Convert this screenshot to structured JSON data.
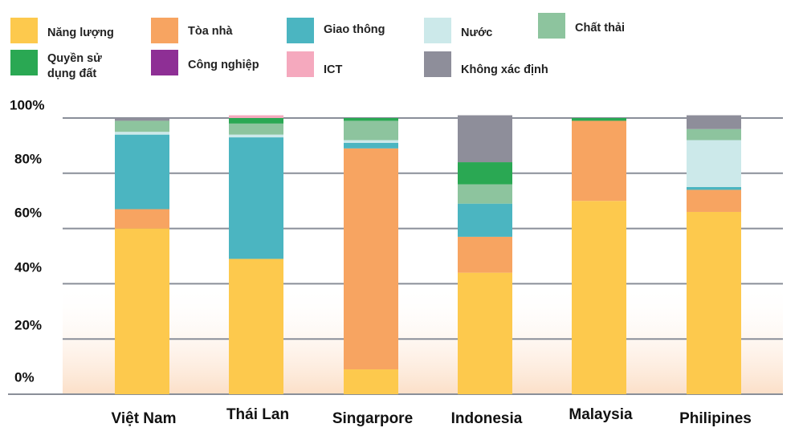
{
  "legend": [
    {
      "label": "Năng lượng",
      "color": "#FDC94D"
    },
    {
      "label": "Tòa nhà",
      "color": "#F7A461"
    },
    {
      "label": "Giao thông",
      "color": "#4BB5C1"
    },
    {
      "label": "Nước",
      "color": "#CCE9EA"
    },
    {
      "label": "Chất thải",
      "color": "#8DC49E"
    },
    {
      "label": "Quyền sử\ndụng đất",
      "color": "#2AA853"
    },
    {
      "label": "Công nghiệp",
      "color": "#8E2F95"
    },
    {
      "label": "ICT",
      "color": "#F5A9BE"
    },
    {
      "label": "Không xác định",
      "color": "#8E8E9A"
    }
  ],
  "chart_data": {
    "type": "bar",
    "stacked": true,
    "categories": [
      "Việt Nam",
      "Thái Lan",
      "Singarpore",
      "Indonesia",
      "Malaysia",
      "Philipines"
    ],
    "y_tick_labels": [
      "0%",
      "20%",
      "40%",
      "60%",
      "80%",
      "100%"
    ],
    "ylim": [
      0,
      100
    ],
    "grid": true,
    "legend_position": "top",
    "series": [
      {
        "name": "Năng lượng",
        "values": [
          60,
          49,
          9,
          44,
          70,
          66
        ]
      },
      {
        "name": "Tòa nhà",
        "values": [
          7,
          0,
          80,
          13,
          29,
          8
        ]
      },
      {
        "name": "Giao thông",
        "values": [
          27,
          44,
          2,
          12,
          0,
          1
        ]
      },
      {
        "name": "Nước",
        "values": [
          1,
          1,
          1,
          0,
          0,
          17
        ]
      },
      {
        "name": "Chất thải",
        "values": [
          4,
          4,
          7,
          7,
          0,
          4
        ]
      },
      {
        "name": "Quyền sử dụng đất",
        "values": [
          0,
          2,
          1,
          8,
          1,
          0
        ]
      },
      {
        "name": "Công nghiệp",
        "values": [
          0,
          0,
          0,
          0,
          0,
          0
        ]
      },
      {
        "name": "ICT",
        "values": [
          0,
          1,
          0,
          0,
          0,
          0
        ]
      },
      {
        "name": "Không xác định",
        "values": [
          1,
          0,
          0,
          17,
          0,
          5
        ]
      }
    ]
  }
}
